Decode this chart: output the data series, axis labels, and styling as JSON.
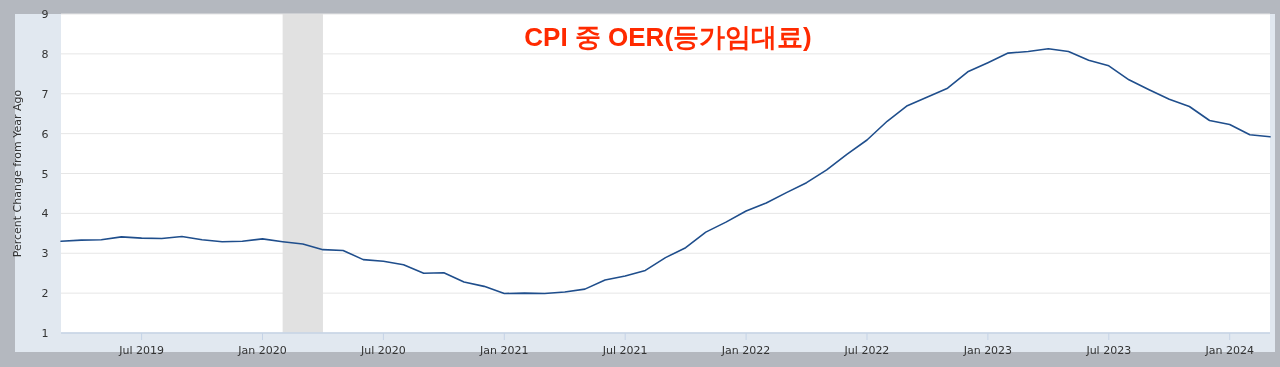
{
  "chart_data": {
    "type": "line",
    "title": "CPI 중 OER(등가임대료)",
    "ylabel": "Percent Change from Year Ago",
    "x": [
      "2019-03",
      "2019-04",
      "2019-05",
      "2019-06",
      "2019-07",
      "2019-08",
      "2019-09",
      "2019-10",
      "2019-11",
      "2019-12",
      "2020-01",
      "2020-02",
      "2020-03",
      "2020-04",
      "2020-05",
      "2020-06",
      "2020-07",
      "2020-08",
      "2020-09",
      "2020-10",
      "2020-11",
      "2020-12",
      "2021-01",
      "2021-02",
      "2021-03",
      "2021-04",
      "2021-05",
      "2021-06",
      "2021-07",
      "2021-08",
      "2021-09",
      "2021-10",
      "2021-11",
      "2021-12",
      "2022-01",
      "2022-02",
      "2022-03",
      "2022-04",
      "2022-05",
      "2022-06",
      "2022-07",
      "2022-08",
      "2022-09",
      "2022-10",
      "2022-11",
      "2022-12",
      "2023-01",
      "2023-02",
      "2023-03",
      "2023-04",
      "2023-05",
      "2023-06",
      "2023-07",
      "2023-08",
      "2023-09",
      "2023-10",
      "2023-11",
      "2023-12",
      "2024-01",
      "2024-02",
      "2024-03"
    ],
    "series": [
      {
        "color": "#1f4e8c",
        "values": [
          3.3,
          3.33,
          3.34,
          3.41,
          3.38,
          3.37,
          3.42,
          3.34,
          3.29,
          3.3,
          3.36,
          3.29,
          3.23,
          3.09,
          3.07,
          2.84,
          2.8,
          2.71,
          2.5,
          2.51,
          2.28,
          2.17,
          1.99,
          2.0,
          1.99,
          2.03,
          2.1,
          2.33,
          2.43,
          2.57,
          2.89,
          3.14,
          3.53,
          3.78,
          4.06,
          4.26,
          4.52,
          4.77,
          5.09,
          5.48,
          5.84,
          6.31,
          6.7,
          6.92,
          7.14,
          7.55,
          7.78,
          8.02,
          8.06,
          8.13,
          8.06,
          7.84,
          7.7,
          7.35,
          7.1,
          6.86,
          6.68,
          6.33,
          6.23,
          5.97,
          5.92
        ]
      }
    ],
    "xlim": [
      "2019-03",
      "2024-03"
    ],
    "xticks": [
      {
        "value": "2019-07",
        "label": "Jul 2019"
      },
      {
        "value": "2020-01",
        "label": "Jan 2020"
      },
      {
        "value": "2020-07",
        "label": "Jul 2020"
      },
      {
        "value": "2021-01",
        "label": "Jan 2021"
      },
      {
        "value": "2021-07",
        "label": "Jul 2021"
      },
      {
        "value": "2022-01",
        "label": "Jan 2022"
      },
      {
        "value": "2022-07",
        "label": "Jul 2022"
      },
      {
        "value": "2023-01",
        "label": "Jan 2023"
      },
      {
        "value": "2023-07",
        "label": "Jul 2023"
      },
      {
        "value": "2024-01",
        "label": "Jan 2024"
      }
    ],
    "ylim": [
      1,
      9
    ],
    "yticks": [
      1,
      2,
      3,
      4,
      5,
      6,
      7,
      8,
      9
    ],
    "bands": [
      {
        "axis": "x",
        "from": "2020-02",
        "to": "2020-04",
        "color": "#e1e1e1"
      }
    ],
    "grid": "y",
    "line_style": "solid",
    "marker": "none"
  }
}
